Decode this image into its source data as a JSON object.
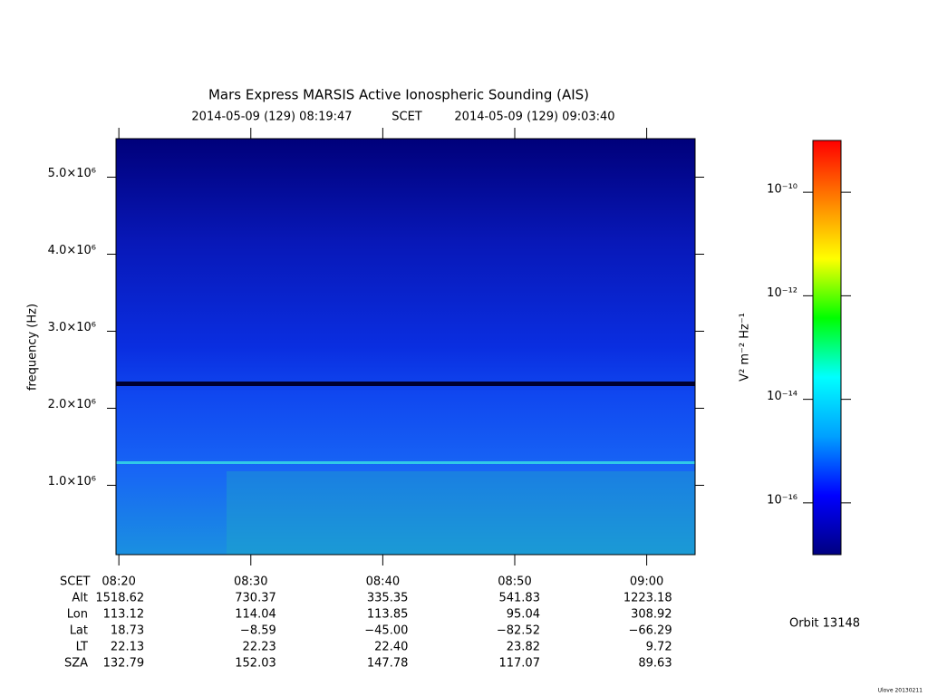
{
  "chart_data": {
    "type": "spectrogram",
    "title": "Mars Express MARSIS Active Ionospheric Sounding (AIS)",
    "time_start": "2014-05-09 (129) 08:19:47",
    "time_system": "SCET",
    "time_end": "2014-05-09 (129) 09:03:40",
    "ylabel": "frequency (Hz)",
    "xlim": [
      499.7833,
      543.6667
    ],
    "xticks": [
      {
        "value": 500,
        "label": "08:20"
      },
      {
        "value": 510,
        "label": "08:30"
      },
      {
        "value": 520,
        "label": "08:40"
      },
      {
        "value": 530,
        "label": "08:50"
      },
      {
        "value": 540,
        "label": "09:00"
      }
    ],
    "ylim": [
      100000,
      5500000
    ],
    "yticks": [
      {
        "value": 1000000,
        "label": "1.0×10⁶"
      },
      {
        "value": 2000000,
        "label": "2.0×10⁶"
      },
      {
        "value": 3000000,
        "label": "3.0×10⁶"
      },
      {
        "value": 4000000,
        "label": "4.0×10⁶"
      },
      {
        "value": 5000000,
        "label": "5.0×10⁶"
      }
    ],
    "colorbar": {
      "label": "V² m⁻² Hz⁻¹",
      "log": true,
      "lim": [
        1e-17,
        1e-09
      ],
      "ticks": [
        {
          "value": 1e-10,
          "label": "10⁻¹⁰"
        },
        {
          "value": 1e-12,
          "label": "10⁻¹²"
        },
        {
          "value": 1e-14,
          "label": "10⁻¹⁴"
        },
        {
          "value": 1e-16,
          "label": "10⁻¹⁶"
        }
      ],
      "colormap": [
        "#000080",
        "#0000ff",
        "#00a0ff",
        "#00ffff",
        "#00ff00",
        "#ffff00",
        "#ff8000",
        "#ff0000"
      ]
    },
    "ephemeris": {
      "time_label": "SCET",
      "rows": [
        {
          "label": "Alt",
          "values": [
            "1518.62",
            "730.37",
            "335.35",
            "541.83",
            "1223.18"
          ]
        },
        {
          "label": "Lon",
          "values": [
            "113.12",
            "114.04",
            "113.85",
            "95.04",
            "308.92"
          ]
        },
        {
          "label": "Lat",
          "values": [
            "18.73",
            "−8.59",
            "−45.00",
            "−82.52",
            "−66.29"
          ]
        },
        {
          "label": "LT",
          "values": [
            "22.13",
            "22.23",
            "22.40",
            "23.82",
            "9.72"
          ]
        },
        {
          "label": "SZA",
          "values": [
            "132.79",
            "152.03",
            "147.78",
            "117.07",
            "89.63"
          ]
        }
      ]
    },
    "orbit": "Orbit 13148",
    "footer": "Ulove 20130211"
  }
}
